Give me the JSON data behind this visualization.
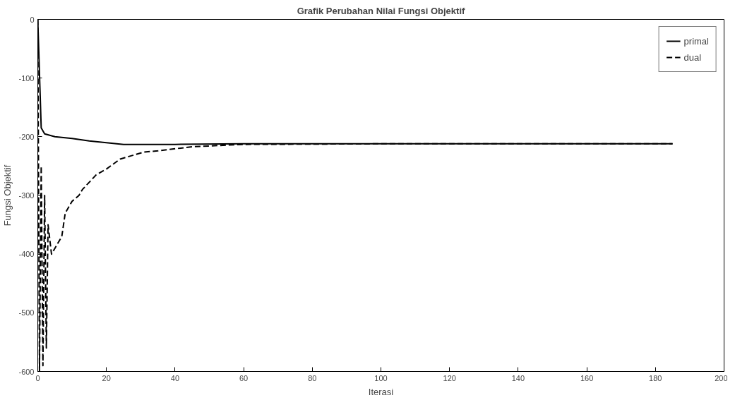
{
  "chart_data": {
    "type": "line",
    "title": "Grafik Perubahan Nilai Fungsi Objektif",
    "xlabel": "Iterasi",
    "ylabel": "Fungsi Objektif",
    "xlim": [
      0,
      200
    ],
    "xticks": [
      0,
      20,
      40,
      60,
      80,
      100,
      120,
      140,
      160,
      180,
      200
    ],
    "ylim": [
      -600,
      0
    ],
    "yticks": [
      -600,
      -500,
      -400,
      -300,
      -200,
      -100,
      0
    ],
    "grid": false,
    "legend": "top right",
    "series": [
      {
        "name": "primal",
        "color": "#000000",
        "line_style": "solid",
        "x": [
          0,
          1,
          2,
          5,
          10,
          15,
          20,
          25,
          30,
          40,
          60,
          100,
          185
        ],
        "values": [
          0,
          -185,
          -195,
          -200,
          -203,
          -207,
          -210,
          -213,
          -213,
          -213,
          -212,
          -212,
          -212
        ]
      },
      {
        "name": "dual",
        "color": "#000000",
        "line_style": "dashed",
        "x": [
          0,
          0.5,
          1,
          1.5,
          2,
          2.5,
          3,
          4,
          7,
          8,
          10,
          12,
          13,
          17,
          20,
          24,
          31,
          35,
          45,
          60,
          100,
          185
        ],
        "values": [
          0,
          -600,
          -250,
          -590,
          -300,
          -560,
          -350,
          -400,
          -370,
          -330,
          -310,
          -300,
          -290,
          -265,
          -255,
          -238,
          -226,
          -224,
          -217,
          -213,
          -212,
          -212
        ]
      }
    ]
  }
}
